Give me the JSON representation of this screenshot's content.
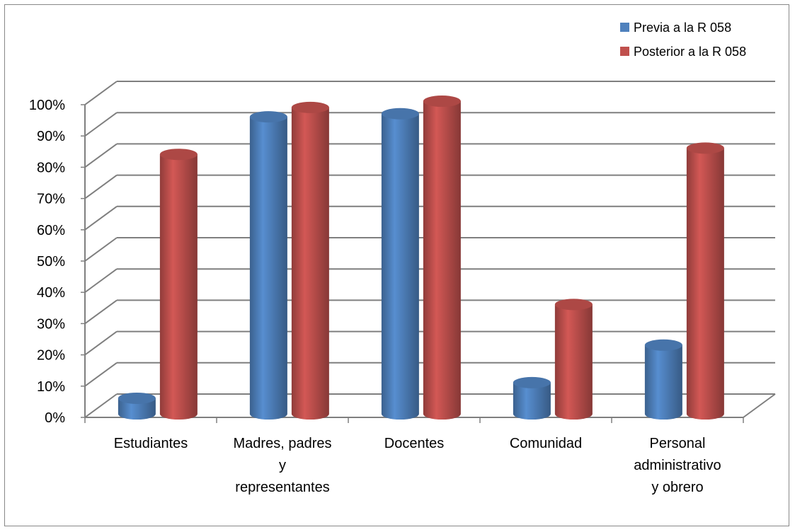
{
  "chart_data": {
    "type": "bar",
    "style": "3d-cylinder",
    "title": "",
    "xlabel": "",
    "ylabel": "",
    "ylim": [
      0,
      100
    ],
    "yticks": [
      "0%",
      "10%",
      "20%",
      "30%",
      "40%",
      "50%",
      "60%",
      "70%",
      "80%",
      "90%",
      "100%"
    ],
    "categories": [
      [
        "Estudiantes"
      ],
      [
        "Madres, padres",
        "y",
        "representantes"
      ],
      [
        "Docentes"
      ],
      [
        "Comunidad"
      ],
      [
        "Personal",
        "administrativo",
        "y obrero"
      ]
    ],
    "series": [
      {
        "name": "Previa a la R 058",
        "color": "#4F81BD",
        "values": [
          5,
          95,
          96,
          10,
          22
        ]
      },
      {
        "name": "Posterior a la R 058",
        "color": "#C0504D",
        "values": [
          83,
          98,
          100,
          35,
          85
        ]
      }
    ],
    "legend": "top-right",
    "grid": true
  }
}
